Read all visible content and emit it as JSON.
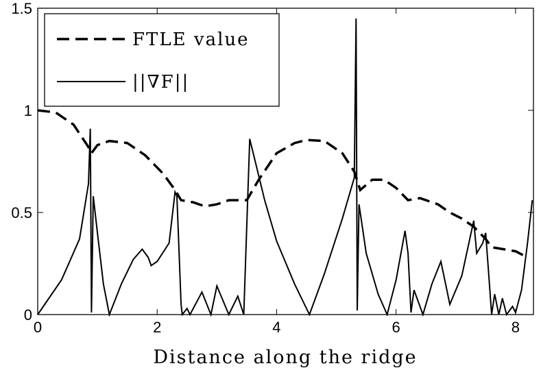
{
  "chart_data": {
    "type": "line",
    "xlabel": "Distance along the ridge",
    "xlim": [
      0,
      8.3
    ],
    "ylim": [
      0,
      1.5
    ],
    "xticks": [
      0,
      2,
      4,
      6,
      8
    ],
    "yticks": [
      0,
      0.5,
      1,
      1.5
    ],
    "legend": "upper left",
    "series": [
      {
        "name": "FTLE value",
        "color": "#000000",
        "dash": true,
        "x": [
          0,
          0.3,
          0.6,
          0.85,
          0.9,
          1.0,
          1.2,
          1.5,
          1.8,
          2.1,
          2.3,
          2.4,
          2.6,
          2.8,
          3.0,
          3.2,
          3.5,
          3.7,
          4.0,
          4.3,
          4.5,
          4.8,
          5.1,
          5.3,
          5.4,
          5.6,
          5.8,
          6.0,
          6.2,
          6.4,
          6.7,
          6.9,
          7.1,
          7.3,
          7.5,
          7.6,
          7.8,
          8.0,
          8.2
        ],
        "values": [
          1.0,
          0.99,
          0.93,
          0.82,
          0.79,
          0.83,
          0.85,
          0.84,
          0.78,
          0.69,
          0.61,
          0.56,
          0.55,
          0.53,
          0.54,
          0.56,
          0.56,
          0.66,
          0.79,
          0.84,
          0.855,
          0.85,
          0.79,
          0.7,
          0.61,
          0.66,
          0.66,
          0.62,
          0.56,
          0.57,
          0.54,
          0.5,
          0.47,
          0.43,
          0.37,
          0.33,
          0.32,
          0.31,
          0.28
        ]
      },
      {
        "name": "||∇F||",
        "color": "#000000",
        "dash": false,
        "x": [
          0,
          0.4,
          0.7,
          0.85,
          0.88,
          0.9,
          0.93,
          1.0,
          1.1,
          1.2,
          1.4,
          1.6,
          1.75,
          1.85,
          1.9,
          2.0,
          2.2,
          2.3,
          2.33,
          2.4,
          2.42,
          2.5,
          2.55,
          2.75,
          2.9,
          3.0,
          3.2,
          3.35,
          3.45,
          3.55,
          3.6,
          3.8,
          4.0,
          4.3,
          4.55,
          4.8,
          5.1,
          5.3,
          5.33,
          5.35,
          5.38,
          5.5,
          5.7,
          5.85,
          6.0,
          6.15,
          6.2,
          6.25,
          6.3,
          6.45,
          6.6,
          6.75,
          6.85,
          6.9,
          7.1,
          7.3,
          7.35,
          7.45,
          7.5,
          7.55,
          7.6,
          7.65,
          7.72,
          7.78,
          7.85,
          7.95,
          8.0,
          8.1,
          8.2,
          8.28
        ],
        "values": [
          0,
          0.17,
          0.37,
          0.64,
          0.91,
          0.01,
          0.58,
          0.4,
          0.15,
          0,
          0.15,
          0.27,
          0.32,
          0.28,
          0.24,
          0.26,
          0.35,
          0.6,
          0.58,
          0.05,
          0,
          0.03,
          0,
          0.11,
          0,
          0.14,
          0,
          0.09,
          0,
          0.86,
          0.8,
          0.56,
          0.36,
          0.15,
          0,
          0.2,
          0.47,
          0.67,
          1.45,
          0.02,
          0.54,
          0.3,
          0.1,
          0,
          0.17,
          0.41,
          0.3,
          0.01,
          0.12,
          0,
          0.15,
          0.26,
          0.12,
          0.05,
          0.19,
          0.46,
          0.3,
          0.35,
          0.4,
          0.2,
          0,
          0.1,
          0,
          0.08,
          0,
          0.04,
          0.01,
          0.12,
          0.35,
          0.56
        ]
      }
    ]
  }
}
